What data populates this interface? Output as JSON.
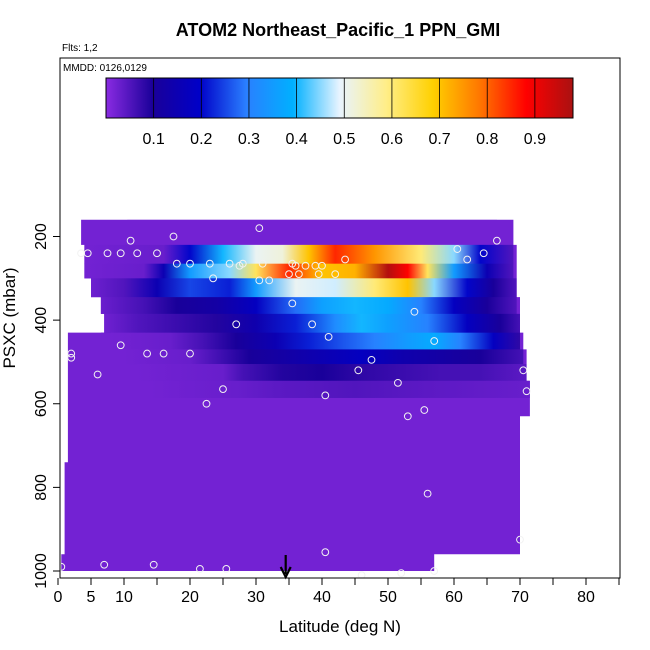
{
  "header": {
    "title": "ATOM2 Northeast_Pacific_1 PPN_GMI",
    "flts": "Flts: 1,2",
    "mmdd": "MMDD: 0126,0129"
  },
  "chart_data": {
    "type": "heatmap",
    "title": "ATOM2 Northeast_Pacific_1 PPN_GMI",
    "xlabel": "Latitude (deg N)",
    "ylabel": "PSXC (mbar)",
    "xlim": [
      0,
      85
    ],
    "ylim": [
      1000,
      0
    ],
    "xticks": [
      0,
      5,
      10,
      20,
      30,
      40,
      50,
      60,
      70,
      80
    ],
    "yticks": [
      200,
      400,
      600,
      800,
      1000
    ],
    "colorbar": {
      "range": [
        0.0,
        0.98
      ],
      "ticks": [
        0.1,
        0.2,
        0.3,
        0.4,
        0.5,
        0.6,
        0.7,
        0.8,
        0.9
      ],
      "colors": [
        "#8a2be2",
        "#1a0099",
        "#0000c8",
        "#2a7fff",
        "#00b0ff",
        "#e8f4ff",
        "#ffee88",
        "#ffd000",
        "#ff7700",
        "#ff0000",
        "#aa1111"
      ]
    },
    "background_value": 0.02,
    "layers": [
      {
        "p": [
          160,
          220
        ],
        "lat": [
          10.5,
          66.5
        ],
        "profile": [
          [
            10.5,
            0.02
          ],
          [
            66.5,
            0.02
          ]
        ]
      },
      {
        "p": [
          220,
          265
        ],
        "lat": [
          3.5,
          69
        ],
        "profile": [
          [
            3.5,
            0.02
          ],
          [
            16,
            0.03
          ],
          [
            20,
            0.2
          ],
          [
            25,
            0.4
          ],
          [
            30,
            0.5
          ],
          [
            34,
            0.52
          ],
          [
            38,
            0.7
          ],
          [
            42,
            0.85
          ],
          [
            48,
            0.75
          ],
          [
            55,
            0.6
          ],
          [
            60,
            0.45
          ],
          [
            64,
            0.2
          ],
          [
            69,
            0.05
          ]
        ]
      },
      {
        "p": [
          265,
          300
        ],
        "lat": [
          3.5,
          69
        ],
        "profile": [
          [
            3.5,
            0.02
          ],
          [
            13,
            0.03
          ],
          [
            16,
            0.15
          ],
          [
            20,
            0.35
          ],
          [
            26,
            0.45
          ],
          [
            30,
            0.62
          ],
          [
            35,
            0.85
          ],
          [
            40,
            0.7
          ],
          [
            45,
            0.72
          ],
          [
            50,
            0.97
          ],
          [
            53,
            0.88
          ],
          [
            56,
            0.62
          ],
          [
            60,
            0.35
          ],
          [
            65,
            0.15
          ],
          [
            69,
            0.05
          ]
        ]
      },
      {
        "p": [
          300,
          345
        ],
        "lat": [
          4,
          69.5
        ],
        "profile": [
          [
            4,
            0.02
          ],
          [
            10,
            0.05
          ],
          [
            15,
            0.15
          ],
          [
            20,
            0.25
          ],
          [
            26,
            0.22
          ],
          [
            30,
            0.35
          ],
          [
            36,
            0.5
          ],
          [
            42,
            0.48
          ],
          [
            48,
            0.6
          ],
          [
            53,
            0.7
          ],
          [
            57,
            0.45
          ],
          [
            62,
            0.2
          ],
          [
            66,
            0.1
          ],
          [
            69.5,
            0.05
          ]
        ]
      },
      {
        "p": [
          345,
          385
        ],
        "lat": [
          5,
          69.5
        ],
        "profile": [
          [
            5,
            0.02
          ],
          [
            9,
            0.04
          ],
          [
            13,
            0.06
          ],
          [
            18,
            0.1
          ],
          [
            24,
            0.12
          ],
          [
            30,
            0.18
          ],
          [
            36,
            0.28
          ],
          [
            40,
            0.36
          ],
          [
            45,
            0.4
          ],
          [
            50,
            0.38
          ],
          [
            55,
            0.3
          ],
          [
            60,
            0.18
          ],
          [
            65,
            0.1
          ],
          [
            69.5,
            0.05
          ]
        ]
      },
      {
        "p": [
          385,
          430
        ],
        "lat": [
          6.5,
          70
        ],
        "profile": [
          [
            6.5,
            0.02
          ],
          [
            12,
            0.05
          ],
          [
            18,
            0.07
          ],
          [
            24,
            0.09
          ],
          [
            30,
            0.14
          ],
          [
            36,
            0.22
          ],
          [
            42,
            0.32
          ],
          [
            46,
            0.4
          ],
          [
            50,
            0.36
          ],
          [
            56,
            0.3
          ],
          [
            62,
            0.18
          ],
          [
            67,
            0.1
          ],
          [
            70,
            0.06
          ]
        ]
      },
      {
        "p": [
          430,
          470
        ],
        "lat": [
          8,
          70
        ],
        "profile": [
          [
            8,
            0.02
          ],
          [
            17,
            0.03
          ],
          [
            22,
            0.06
          ],
          [
            27,
            0.1
          ],
          [
            33,
            0.15
          ],
          [
            38,
            0.22
          ],
          [
            43,
            0.26
          ],
          [
            48,
            0.3
          ],
          [
            53,
            0.35
          ],
          [
            57,
            0.38
          ],
          [
            61,
            0.3
          ],
          [
            66,
            0.18
          ],
          [
            70,
            0.08
          ]
        ]
      },
      {
        "p": [
          470,
          505
        ],
        "lat": [
          10,
          70.5
        ],
        "profile": [
          [
            10,
            0.02
          ],
          [
            20,
            0.03
          ],
          [
            24,
            0.06
          ],
          [
            29,
            0.1
          ],
          [
            34,
            0.12
          ],
          [
            40,
            0.15
          ],
          [
            46,
            0.18
          ],
          [
            52,
            0.14
          ],
          [
            58,
            0.12
          ],
          [
            64,
            0.1
          ],
          [
            70.5,
            0.06
          ]
        ]
      },
      {
        "p": [
          505,
          545
        ],
        "lat": [
          12,
          71
        ],
        "profile": [
          [
            12,
            0.02
          ],
          [
            25,
            0.03
          ],
          [
            28,
            0.06
          ],
          [
            34,
            0.09
          ],
          [
            40,
            0.1
          ],
          [
            46,
            0.08
          ],
          [
            52,
            0.07
          ],
          [
            58,
            0.06
          ],
          [
            64,
            0.06
          ],
          [
            71,
            0.04
          ]
        ]
      },
      {
        "p": [
          545,
          585
        ],
        "lat": [
          14,
          71.5
        ],
        "profile": [
          [
            14,
            0.02
          ],
          [
            27,
            0.03
          ],
          [
            33,
            0.04
          ],
          [
            45,
            0.05
          ],
          [
            56,
            0.04
          ],
          [
            71.5,
            0.03
          ]
        ]
      }
    ],
    "envelope": [
      [
        160,
        10.5,
        66.5
      ],
      [
        220,
        3.5,
        69
      ],
      [
        300,
        4,
        69.5
      ],
      [
        345,
        5,
        69.5
      ],
      [
        385,
        6.5,
        70
      ],
      [
        430,
        7,
        70
      ],
      [
        470,
        1.5,
        70.5
      ],
      [
        545,
        1.5,
        71
      ],
      [
        590,
        1.5,
        71.5
      ],
      [
        630,
        1.5,
        71.5
      ],
      [
        650,
        1.5,
        70
      ],
      [
        740,
        1.5,
        70
      ],
      [
        770,
        1,
        70
      ],
      [
        960,
        1,
        70
      ],
      [
        965,
        0.5,
        57
      ],
      [
        1000,
        0.5,
        57
      ]
    ],
    "points": [
      [
        11,
        210
      ],
      [
        17.5,
        200
      ],
      [
        30.5,
        180
      ],
      [
        66.5,
        210
      ],
      [
        64.5,
        240
      ],
      [
        60.5,
        230
      ],
      [
        62,
        255
      ],
      [
        3.5,
        240
      ],
      [
        4.5,
        240
      ],
      [
        7.5,
        240
      ],
      [
        9.5,
        240
      ],
      [
        12,
        240
      ],
      [
        15,
        240
      ],
      [
        20,
        265
      ],
      [
        23,
        265
      ],
      [
        26,
        265
      ],
      [
        28,
        265
      ],
      [
        31,
        265
      ],
      [
        36,
        270
      ],
      [
        37.5,
        270
      ],
      [
        39,
        270
      ],
      [
        40,
        270
      ],
      [
        43.5,
        255
      ],
      [
        35.5,
        265
      ],
      [
        18,
        265
      ],
      [
        27.5,
        270
      ],
      [
        23.5,
        300
      ],
      [
        30.5,
        305
      ],
      [
        32,
        305
      ],
      [
        35,
        290
      ],
      [
        36.5,
        290
      ],
      [
        39.5,
        290
      ],
      [
        42,
        290
      ],
      [
        35.5,
        360
      ],
      [
        54,
        380
      ],
      [
        27,
        410
      ],
      [
        38.5,
        410
      ],
      [
        41,
        440
      ],
      [
        57,
        450
      ],
      [
        9.5,
        460
      ],
      [
        13.5,
        480
      ],
      [
        16,
        480
      ],
      [
        20,
        480
      ],
      [
        2,
        480
      ],
      [
        2,
        490
      ],
      [
        6,
        530
      ],
      [
        47.5,
        495
      ],
      [
        45.5,
        520
      ],
      [
        51.5,
        550
      ],
      [
        70.5,
        520
      ],
      [
        71,
        570
      ],
      [
        25,
        565
      ],
      [
        40.5,
        580
      ],
      [
        22.5,
        600
      ],
      [
        53,
        630
      ],
      [
        55.5,
        615
      ],
      [
        56,
        815
      ],
      [
        70,
        925
      ],
      [
        40.5,
        955
      ],
      [
        14.5,
        985
      ],
      [
        7,
        985
      ],
      [
        0.5,
        990
      ],
      [
        21.5,
        995
      ],
      [
        25.5,
        995
      ],
      [
        46,
        1010
      ],
      [
        52,
        1005
      ],
      [
        57,
        1000
      ]
    ],
    "arrow_lat": 34.5
  }
}
